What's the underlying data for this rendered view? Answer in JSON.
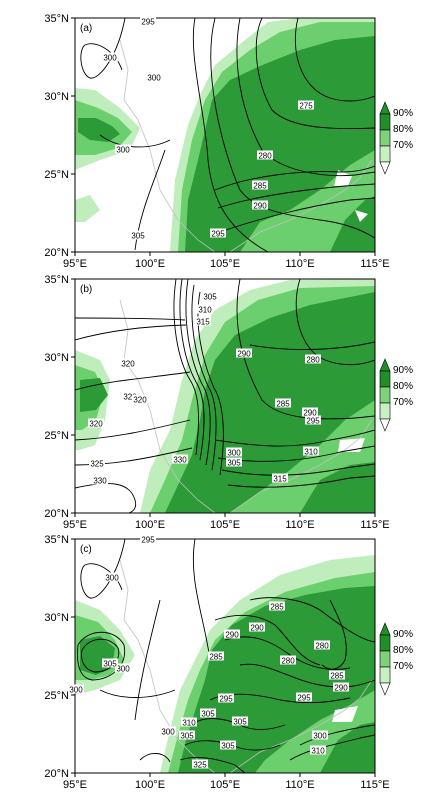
{
  "figure": {
    "lat_ticks": [
      "35°N",
      "30°N",
      "25°N",
      "20°N"
    ],
    "lon_ticks": [
      "95°E",
      "100°E",
      "105°E",
      "110°E",
      "115°E"
    ]
  },
  "legend": {
    "labels": [
      "90%",
      "80%",
      "70%"
    ],
    "colors": [
      "#1f8f2a",
      "#7fd17a",
      "#c9f0c4"
    ]
  },
  "colors": {
    "dark_green": "#2b9a37",
    "mid_green": "#6ccf6d",
    "light_green": "#bfeebc",
    "contour": "#000000",
    "coast": "#c0c0c0"
  },
  "panels": [
    {
      "tag": "(a)",
      "contour_labels": [
        "295",
        "300",
        "300",
        "300",
        "305",
        "275",
        "280",
        "285",
        "290",
        "295"
      ]
    },
    {
      "tag": "(b)",
      "contour_labels": [
        "305",
        "310",
        "315",
        "320",
        "320",
        "320",
        "320",
        "325",
        "330",
        "330",
        "290",
        "280",
        "285",
        "290",
        "295",
        "300",
        "305",
        "310",
        "315"
      ]
    },
    {
      "tag": "(c)",
      "contour_labels": [
        "295",
        "300",
        "300",
        "305",
        "300",
        "305",
        "305",
        "285",
        "290",
        "290",
        "285",
        "280",
        "280",
        "285",
        "290",
        "295",
        "295",
        "300",
        "305",
        "310",
        "310",
        "300",
        "305",
        "325"
      ]
    }
  ]
}
